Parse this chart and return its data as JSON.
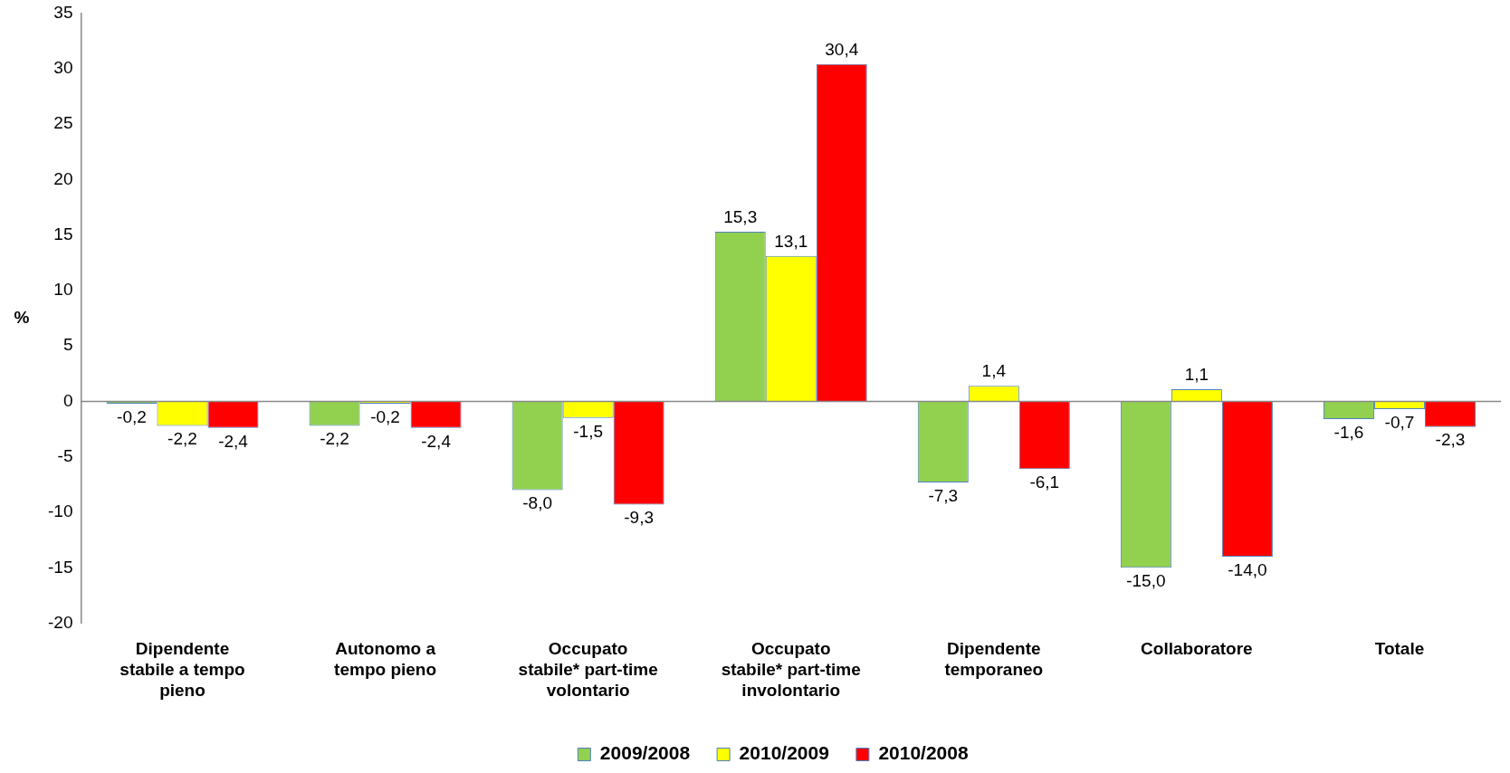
{
  "chart_data": {
    "type": "bar",
    "ylabel": "%",
    "categories": [
      "Dipendente stabile a tempo pieno",
      "Autonomo a tempo pieno",
      "Occupato stabile* part-time volontario",
      "Occupato stabile* part-time involontario",
      "Dipendente temporaneo",
      "Collaboratore",
      "Totale"
    ],
    "series": [
      {
        "name": "2009/2008",
        "color": "#92d050",
        "values": [
          -0.2,
          -2.2,
          -8.0,
          15.3,
          -7.3,
          -15.0,
          -1.6
        ],
        "value_labels": [
          "-0,2",
          "-2,2",
          "-8,0",
          "15,3",
          "-7,3",
          "-15,0",
          "-1,6"
        ]
      },
      {
        "name": "2010/2009",
        "color": "#ffff00",
        "values": [
          -2.2,
          -0.2,
          -1.5,
          13.1,
          1.4,
          1.1,
          -0.7
        ],
        "value_labels": [
          "-2,2",
          "-0,2",
          "-1,5",
          "13,1",
          "1,4",
          "1,1",
          "-0,7"
        ]
      },
      {
        "name": "2010/2008",
        "color": "#ff0000",
        "values": [
          -2.4,
          -2.4,
          -9.3,
          30.4,
          -6.1,
          -14.0,
          -2.3
        ],
        "value_labels": [
          "-2,4",
          "-2,4",
          "-9,3",
          "30,4",
          "-6,1",
          "-14,0",
          "-2,3"
        ]
      }
    ],
    "ylim": [
      -20,
      35
    ],
    "yticks": [
      -20,
      -15,
      -10,
      -5,
      0,
      5,
      10,
      15,
      20,
      25,
      30,
      35
    ],
    "legend": "bottom"
  }
}
